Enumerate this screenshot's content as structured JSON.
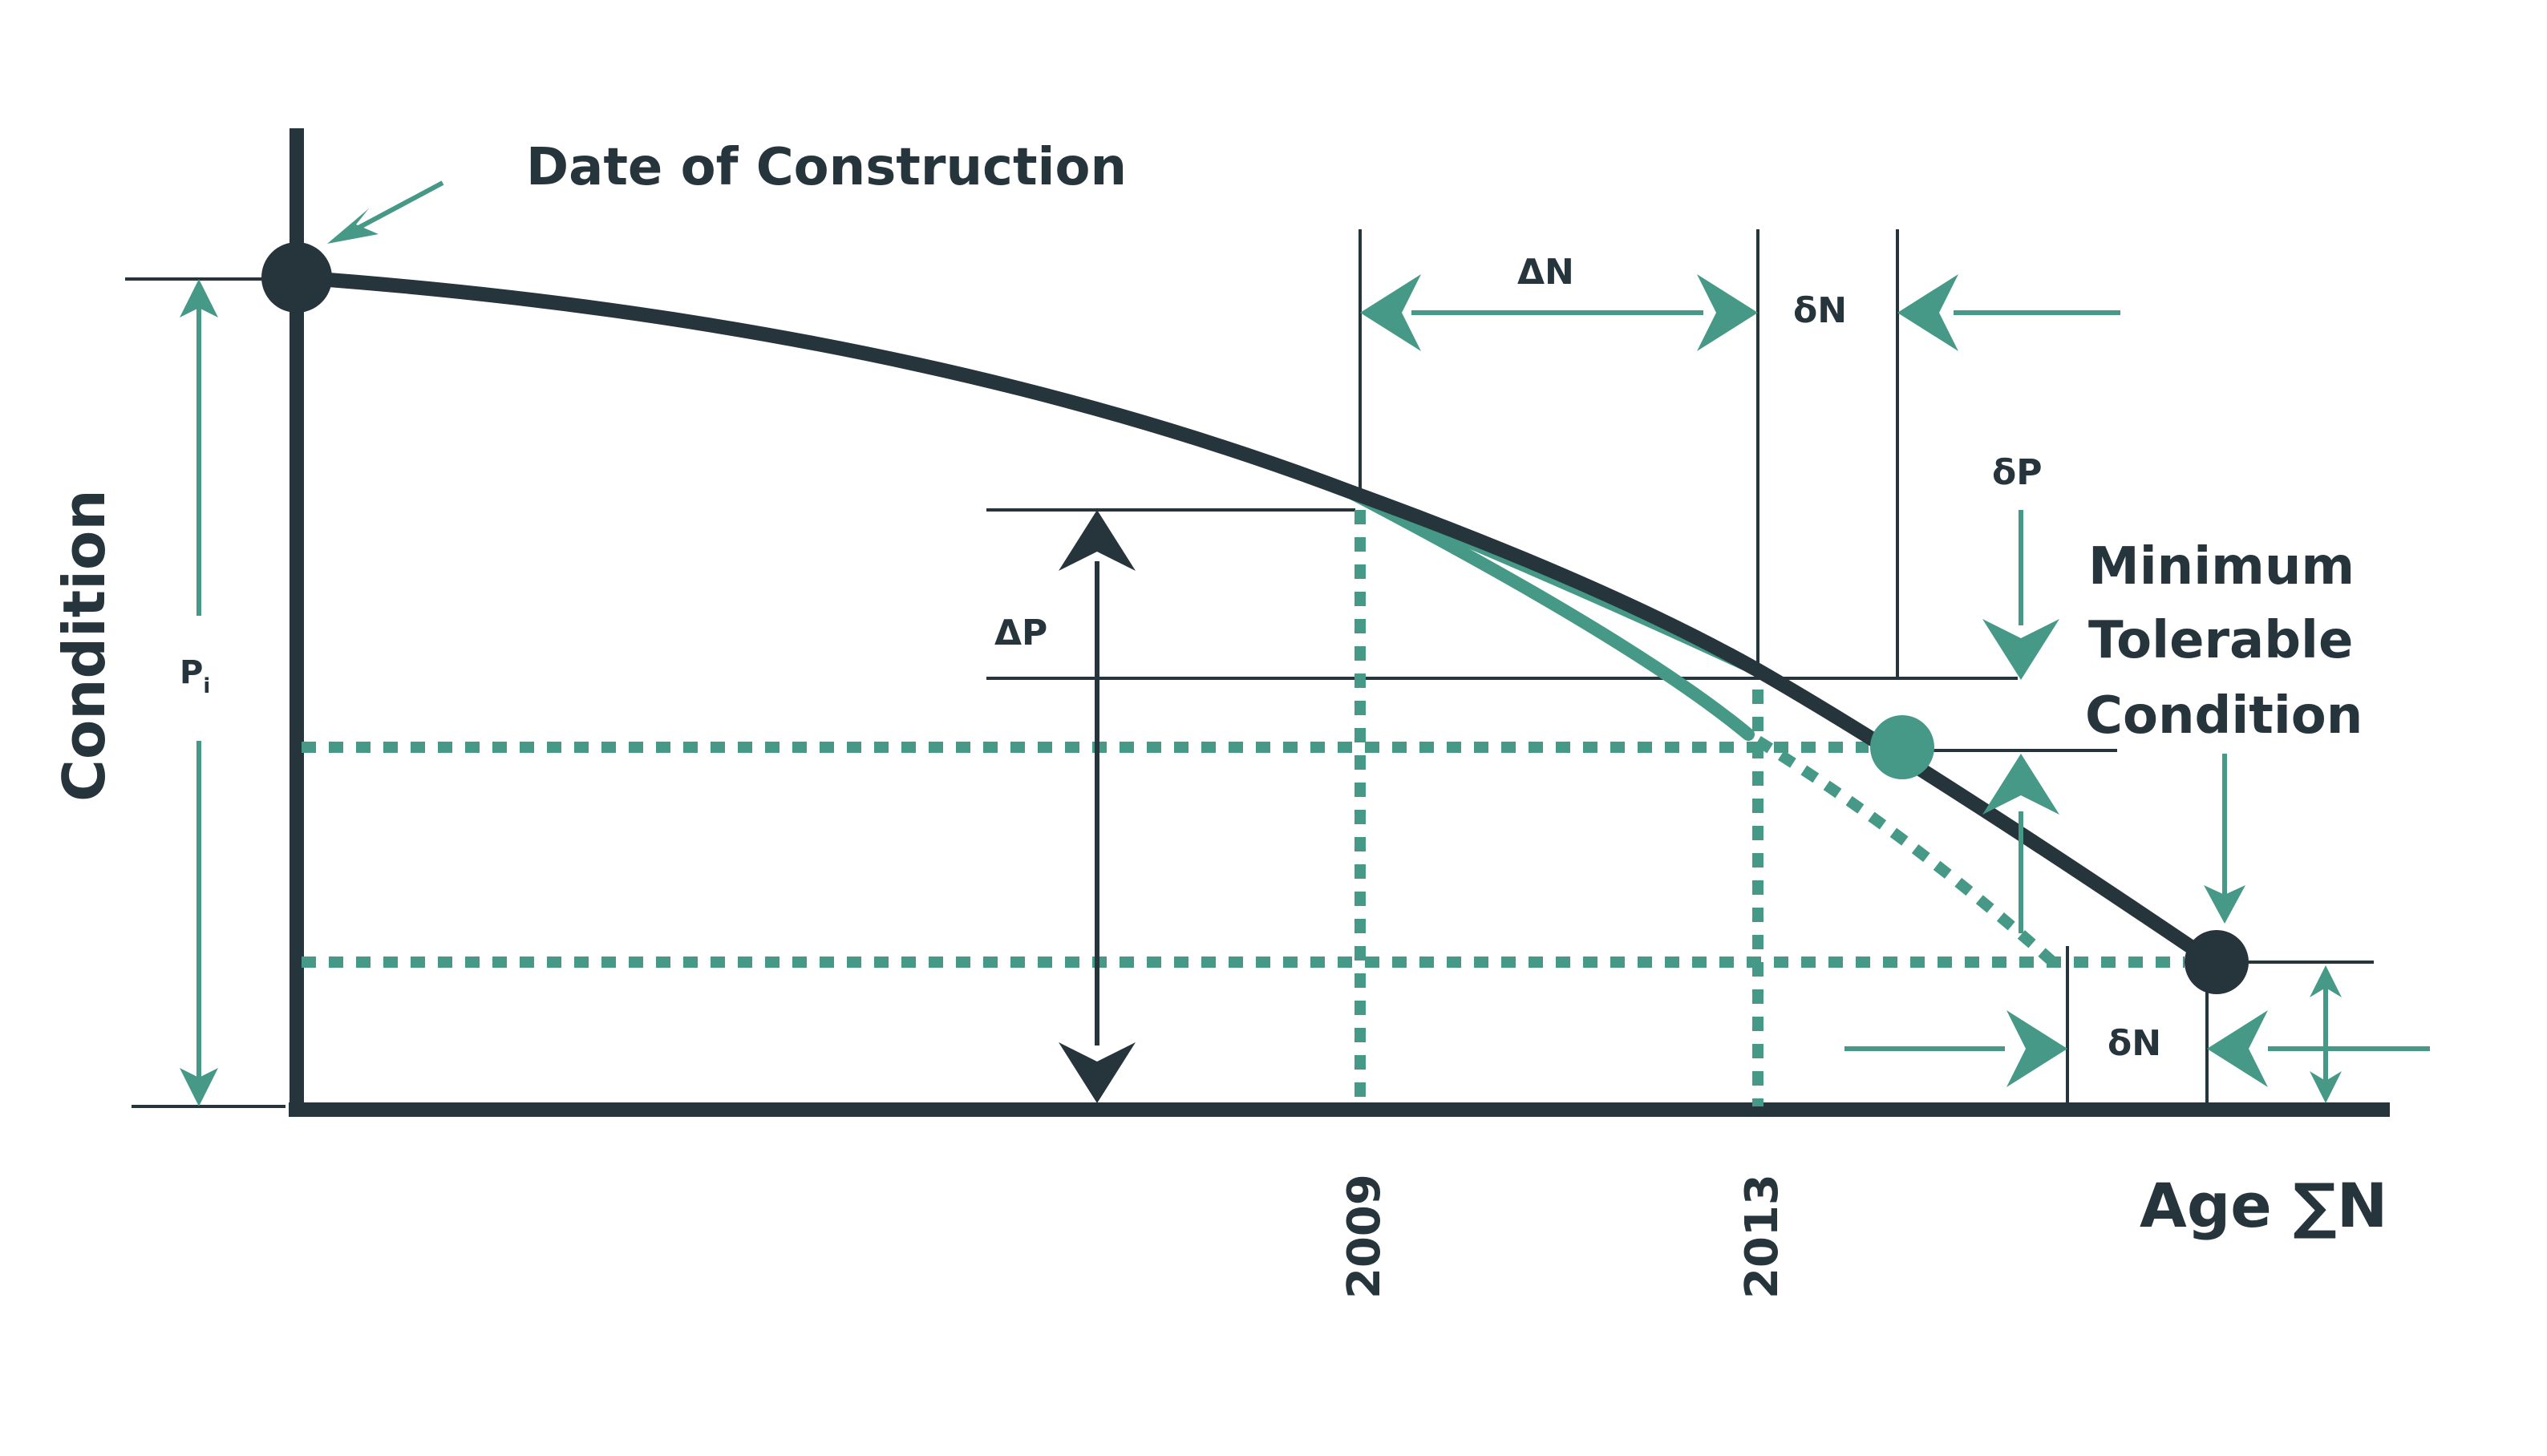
{
  "labels": {
    "date_of_construction": "Date of Construction",
    "condition": "Condition",
    "pi_main": "P",
    "pi_sub": "i",
    "delta_n": "ΔN",
    "small_delta_n_top": "δN",
    "small_delta_n_bottom": "δN",
    "delta_p": "ΔP",
    "small_delta_p": "δP",
    "min_line1": "Minimum",
    "min_line2": "Tolerable",
    "min_line3": "Condition",
    "year_2009": "2009",
    "year_2013": "2013",
    "age_axis": "Age ∑N"
  },
  "colors": {
    "dark": "#26343c",
    "teal": "#469987",
    "background": "#ffffff"
  }
}
